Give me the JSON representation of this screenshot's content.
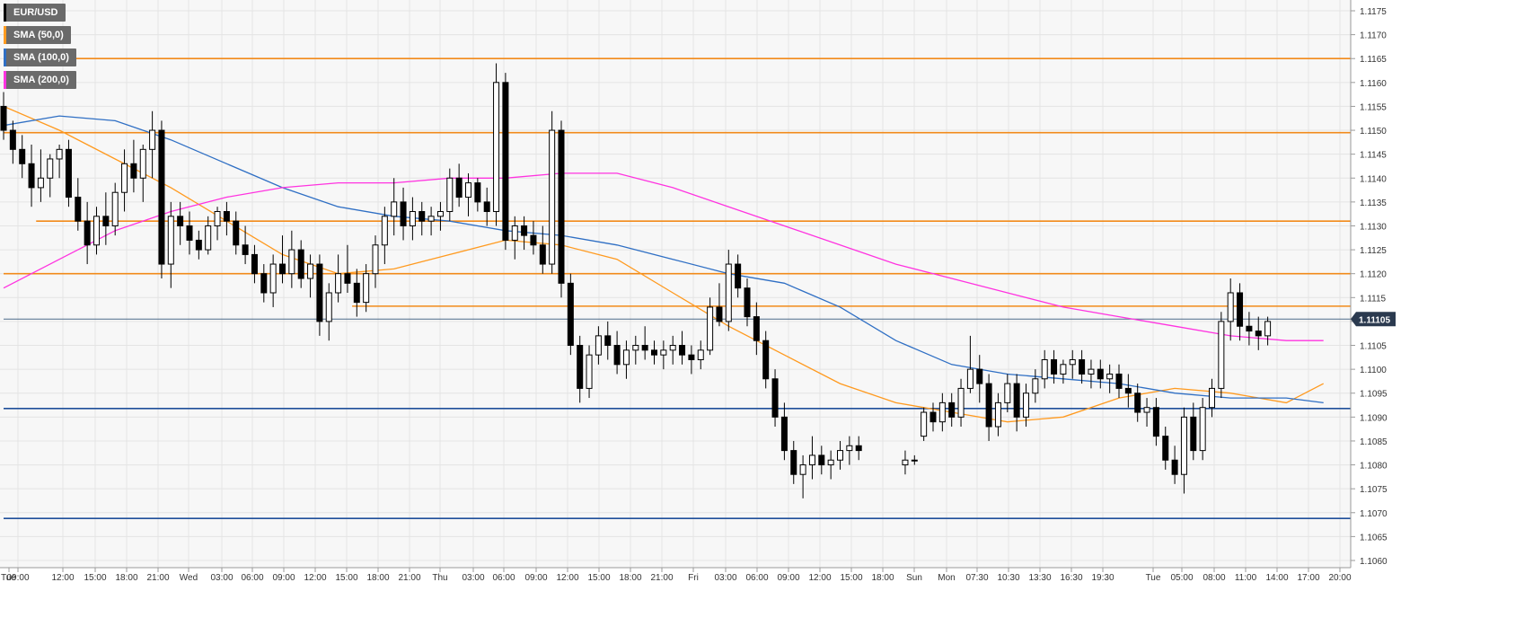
{
  "legend": [
    {
      "label": "EUR/USD",
      "color": "#000000"
    },
    {
      "label": "SMA (50,0)",
      "color": "#ff9a1f"
    },
    {
      "label": "SMA (100,0)",
      "color": "#2f6fc4"
    },
    {
      "label": "SMA (200,0)",
      "color": "#ff33e0"
    }
  ],
  "last_price_label": "1.11105",
  "chart_data": {
    "type": "candlestick",
    "symbol": "EUR/USD",
    "ylim": [
      1.1058,
      1.1178
    ],
    "y_ticks": [
      "1.1060",
      "1.1065",
      "1.1070",
      "1.1075",
      "1.1080",
      "1.1085",
      "1.1090",
      "1.1095",
      "1.1100",
      "1.1105",
      "1.1110",
      "1.1115",
      "1.1120",
      "1.1125",
      "1.1130",
      "1.1135",
      "1.1140",
      "1.1145",
      "1.1150",
      "1.1155",
      "1.1160",
      "1.1165",
      "1.1170",
      "1.1175"
    ],
    "x_ticks": [
      "Tue",
      "09:00",
      "12:00",
      "15:00",
      "18:00",
      "21:00",
      "Wed",
      "03:00",
      "06:00",
      "09:00",
      "12:00",
      "15:00",
      "18:00",
      "21:00",
      "Thu",
      "03:00",
      "06:00",
      "09:00",
      "12:00",
      "15:00",
      "18:00",
      "21:00",
      "Fri",
      "03:00",
      "06:00",
      "09:00",
      "12:00",
      "15:00",
      "18:00",
      "Sun",
      "Mon",
      "07:30",
      "10:30",
      "13:30",
      "16:30",
      "19:30",
      "Tue",
      "05:00",
      "08:00",
      "11:00",
      "14:00",
      "17:00",
      "20:00"
    ],
    "x_range": [
      0,
      155
    ],
    "last_price": 1.11105,
    "horizontal_levels": [
      {
        "value": 1.1165,
        "color": "#f28a1a",
        "x_start": 0
      },
      {
        "value": 1.11495,
        "color": "#f28a1a",
        "x_start": 0
      },
      {
        "value": 1.1131,
        "color": "#f28a1a",
        "x_start": 3.5
      },
      {
        "value": 1.112,
        "color": "#f28a1a",
        "x_start": 0
      },
      {
        "value": 1.11132,
        "color": "#f28a1a",
        "x_start": 37.5
      },
      {
        "value": 1.11105,
        "color": "#4d6a8a",
        "x_start": 0
      },
      {
        "value": 1.10918,
        "color": "#1f4f9a",
        "x_start": 0
      },
      {
        "value": 1.10688,
        "color": "#1f4f9a",
        "x_start": 0
      }
    ],
    "candles": [
      [
        1.1155,
        1.1158,
        1.1148,
        1.115
      ],
      [
        1.115,
        1.1152,
        1.1143,
        1.1146
      ],
      [
        1.1146,
        1.1149,
        1.114,
        1.1143
      ],
      [
        1.1143,
        1.1147,
        1.1134,
        1.1138
      ],
      [
        1.1138,
        1.1146,
        1.1135,
        1.114
      ],
      [
        1.114,
        1.1145,
        1.1136,
        1.1144
      ],
      [
        1.1144,
        1.1147,
        1.114,
        1.1146
      ],
      [
        1.1146,
        1.1148,
        1.1134,
        1.1136
      ],
      [
        1.1136,
        1.114,
        1.1129,
        1.1131
      ],
      [
        1.1131,
        1.1135,
        1.1122,
        1.1126
      ],
      [
        1.1126,
        1.1134,
        1.1124,
        1.1132
      ],
      [
        1.1132,
        1.1137,
        1.1126,
        1.113
      ],
      [
        1.113,
        1.1139,
        1.1128,
        1.1137
      ],
      [
        1.1137,
        1.1146,
        1.1133,
        1.1143
      ],
      [
        1.1143,
        1.1148,
        1.1137,
        1.114
      ],
      [
        1.114,
        1.1147,
        1.1135,
        1.1146
      ],
      [
        1.1146,
        1.1154,
        1.114,
        1.115
      ],
      [
        1.115,
        1.1152,
        1.1119,
        1.1122
      ],
      [
        1.1122,
        1.1135,
        1.1117,
        1.1132
      ],
      [
        1.1132,
        1.1135,
        1.1126,
        1.113
      ],
      [
        1.113,
        1.1133,
        1.1124,
        1.1127
      ],
      [
        1.1127,
        1.1129,
        1.1123,
        1.1125
      ],
      [
        1.1125,
        1.1132,
        1.1124,
        1.113
      ],
      [
        1.113,
        1.1134,
        1.1127,
        1.1133
      ],
      [
        1.1133,
        1.1135,
        1.1128,
        1.1131
      ],
      [
        1.1131,
        1.1133,
        1.1124,
        1.1126
      ],
      [
        1.1126,
        1.113,
        1.1122,
        1.1124
      ],
      [
        1.1124,
        1.1126,
        1.1118,
        1.112
      ],
      [
        1.112,
        1.1122,
        1.1114,
        1.1116
      ],
      [
        1.1116,
        1.1124,
        1.1113,
        1.1122
      ],
      [
        1.1122,
        1.1128,
        1.1118,
        1.112
      ],
      [
        1.112,
        1.1129,
        1.1117,
        1.1125
      ],
      [
        1.1125,
        1.1127,
        1.1117,
        1.1119
      ],
      [
        1.1119,
        1.1124,
        1.1115,
        1.1122
      ],
      [
        1.1122,
        1.1124,
        1.1107,
        1.111
      ],
      [
        1.111,
        1.1118,
        1.1106,
        1.1116
      ],
      [
        1.1116,
        1.1124,
        1.1114,
        1.112
      ],
      [
        1.112,
        1.1126,
        1.1116,
        1.1118
      ],
      [
        1.1118,
        1.1121,
        1.1111,
        1.1114
      ],
      [
        1.1114,
        1.1122,
        1.1112,
        1.112
      ],
      [
        1.112,
        1.1128,
        1.1117,
        1.1126
      ],
      [
        1.1126,
        1.1134,
        1.1122,
        1.1132
      ],
      [
        1.1132,
        1.114,
        1.1128,
        1.1135
      ],
      [
        1.1135,
        1.1138,
        1.1127,
        1.113
      ],
      [
        1.113,
        1.1136,
        1.1127,
        1.1133
      ],
      [
        1.1133,
        1.1135,
        1.1128,
        1.1131
      ],
      [
        1.1131,
        1.1134,
        1.1128,
        1.1132
      ],
      [
        1.1132,
        1.1135,
        1.1129,
        1.1133
      ],
      [
        1.1133,
        1.1142,
        1.1131,
        1.114
      ],
      [
        1.114,
        1.1143,
        1.1134,
        1.1136
      ],
      [
        1.1136,
        1.1141,
        1.1132,
        1.1139
      ],
      [
        1.1139,
        1.114,
        1.1133,
        1.1135
      ],
      [
        1.1135,
        1.1138,
        1.113,
        1.1133
      ],
      [
        1.1133,
        1.1164,
        1.113,
        1.116
      ],
      [
        1.116,
        1.1162,
        1.1125,
        1.1127
      ],
      [
        1.1127,
        1.1132,
        1.1123,
        1.113
      ],
      [
        1.113,
        1.1132,
        1.1125,
        1.1128
      ],
      [
        1.1128,
        1.1131,
        1.1124,
        1.1126
      ],
      [
        1.1126,
        1.113,
        1.112,
        1.1122
      ],
      [
        1.1122,
        1.1154,
        1.112,
        1.115
      ],
      [
        1.115,
        1.1152,
        1.1115,
        1.1118
      ],
      [
        1.1118,
        1.112,
        1.1103,
        1.1105
      ],
      [
        1.1105,
        1.1107,
        1.1093,
        1.1096
      ],
      [
        1.1096,
        1.1105,
        1.1094,
        1.1103
      ],
      [
        1.1103,
        1.1109,
        1.1101,
        1.1107
      ],
      [
        1.1107,
        1.111,
        1.1102,
        1.1105
      ],
      [
        1.1105,
        1.1108,
        1.1099,
        1.1101
      ],
      [
        1.1101,
        1.1106,
        1.1098,
        1.1104
      ],
      [
        1.1104,
        1.1107,
        1.1101,
        1.1105
      ],
      [
        1.1105,
        1.1109,
        1.1102,
        1.1104
      ],
      [
        1.1104,
        1.1106,
        1.1101,
        1.1103
      ],
      [
        1.1103,
        1.1106,
        1.11,
        1.1104
      ],
      [
        1.1104,
        1.1107,
        1.1101,
        1.1105
      ],
      [
        1.1105,
        1.1108,
        1.1101,
        1.1103
      ],
      [
        1.1103,
        1.1105,
        1.1099,
        1.1102
      ],
      [
        1.1102,
        1.1106,
        1.11,
        1.1104
      ],
      [
        1.1104,
        1.1115,
        1.1103,
        1.1113
      ],
      [
        1.1113,
        1.1118,
        1.1109,
        1.111
      ],
      [
        1.111,
        1.1125,
        1.1108,
        1.1122
      ],
      [
        1.1122,
        1.1124,
        1.1115,
        1.1117
      ],
      [
        1.1117,
        1.1119,
        1.1109,
        1.1111
      ],
      [
        1.1111,
        1.1114,
        1.1103,
        1.1106
      ],
      [
        1.1106,
        1.1108,
        1.1096,
        1.1098
      ],
      [
        1.1098,
        1.11,
        1.1088,
        1.109
      ],
      [
        1.109,
        1.1093,
        1.1081,
        1.1083
      ],
      [
        1.1083,
        1.1085,
        1.1076,
        1.1078
      ],
      [
        1.1078,
        1.1082,
        1.1073,
        1.108
      ],
      [
        1.108,
        1.1086,
        1.1077,
        1.1082
      ],
      [
        1.1082,
        1.1084,
        1.1078,
        1.108
      ],
      [
        1.108,
        1.1083,
        1.1077,
        1.1081
      ],
      [
        1.1081,
        1.1085,
        1.1079,
        1.1083
      ],
      [
        1.1083,
        1.1086,
        1.108,
        1.1084
      ],
      [
        1.1084,
        1.1086,
        1.1081,
        1.1083
      ],
      [
        1.108,
        1.1083,
        1.1078,
        1.1081
      ],
      [
        1.1081,
        1.1082,
        1.108,
        1.1081
      ],
      [
        1.1086,
        1.1092,
        1.1085,
        1.1091
      ],
      [
        1.1091,
        1.1093,
        1.1087,
        1.1089
      ],
      [
        1.1089,
        1.1095,
        1.1087,
        1.1093
      ],
      [
        1.1093,
        1.1095,
        1.1088,
        1.109
      ],
      [
        1.109,
        1.1098,
        1.1088,
        1.1096
      ],
      [
        1.1096,
        1.1107,
        1.1095,
        1.11
      ],
      [
        1.11,
        1.1103,
        1.1093,
        1.1097
      ],
      [
        1.1097,
        1.1099,
        1.1085,
        1.1088
      ],
      [
        1.1088,
        1.1095,
        1.1086,
        1.1093
      ],
      [
        1.1093,
        1.1099,
        1.1091,
        1.1097
      ],
      [
        1.1097,
        1.1099,
        1.1087,
        1.109
      ],
      [
        1.109,
        1.1097,
        1.1088,
        1.1095
      ],
      [
        1.1095,
        1.11,
        1.1093,
        1.1098
      ],
      [
        1.1098,
        1.1104,
        1.1096,
        1.1102
      ],
      [
        1.1102,
        1.1104,
        1.1097,
        1.1099
      ],
      [
        1.1099,
        1.1102,
        1.1097,
        1.1101
      ],
      [
        1.1101,
        1.1104,
        1.1098,
        1.1102
      ],
      [
        1.1102,
        1.1104,
        1.1097,
        1.1099
      ],
      [
        1.1099,
        1.1102,
        1.1096,
        1.11
      ],
      [
        1.11,
        1.1102,
        1.1096,
        1.1098
      ],
      [
        1.1098,
        1.1101,
        1.1095,
        1.1099
      ],
      [
        1.1099,
        1.1101,
        1.1094,
        1.1096
      ],
      [
        1.1096,
        1.1099,
        1.1092,
        1.1095
      ],
      [
        1.1095,
        1.1097,
        1.1089,
        1.1091
      ],
      [
        1.1091,
        1.1094,
        1.1088,
        1.1092
      ],
      [
        1.1092,
        1.1094,
        1.1084,
        1.1086
      ],
      [
        1.1086,
        1.1088,
        1.1079,
        1.1081
      ],
      [
        1.1081,
        1.1084,
        1.1076,
        1.1078
      ],
      [
        1.1078,
        1.1092,
        1.1074,
        1.109
      ],
      [
        1.109,
        1.1093,
        1.1081,
        1.1083
      ],
      [
        1.1083,
        1.1094,
        1.1081,
        1.1092
      ],
      [
        1.1092,
        1.1098,
        1.109,
        1.1096
      ],
      [
        1.1096,
        1.1112,
        1.1094,
        1.111
      ],
      [
        1.111,
        1.1119,
        1.1106,
        1.1116
      ],
      [
        1.1116,
        1.1118,
        1.1106,
        1.1109
      ],
      [
        1.1109,
        1.1112,
        1.1105,
        1.1108
      ],
      [
        1.1108,
        1.1111,
        1.1104,
        1.1107
      ],
      [
        1.1107,
        1.1111,
        1.1105,
        1.111
      ]
    ],
    "candle_x": [
      0,
      1,
      2,
      3,
      4,
      5,
      6,
      7,
      8,
      9,
      10,
      11,
      12,
      13,
      14,
      15,
      16,
      17,
      18,
      19,
      20,
      21,
      22,
      23,
      24,
      25,
      26,
      27,
      28,
      29,
      30,
      31,
      32,
      33,
      34,
      35,
      36,
      37,
      38,
      39,
      40,
      41,
      42,
      43,
      44,
      45,
      46,
      47,
      48,
      49,
      50,
      51,
      52,
      53,
      54,
      55,
      56,
      57,
      58,
      59,
      60,
      61,
      62,
      63,
      64,
      65,
      66,
      67,
      68,
      69,
      70,
      71,
      72,
      73,
      74,
      75,
      76,
      77,
      78,
      79,
      80,
      81,
      82,
      83,
      84,
      85,
      86,
      87,
      88,
      89,
      90,
      91,
      92,
      97,
      98,
      99,
      100,
      101,
      102,
      103,
      104,
      105,
      106,
      107,
      108,
      109,
      110,
      111,
      112,
      113,
      114,
      115,
      116,
      117,
      118,
      119,
      120,
      121,
      122,
      123,
      124,
      125,
      126,
      127,
      128,
      129,
      130,
      131,
      132,
      133,
      134,
      135,
      136,
      137,
      138,
      139,
      140,
      141,
      142
    ],
    "series": [
      {
        "name": "SMA (50,0)",
        "color": "#ff9a1f",
        "x": [
          0,
          6,
          12,
          18,
          24,
          30,
          36,
          42,
          48,
          54,
          60,
          66,
          72,
          78,
          84,
          90,
          96,
          102,
          108,
          114,
          120,
          126,
          132,
          138,
          142
        ],
        "y": [
          1.1155,
          1.115,
          1.1144,
          1.1138,
          1.1131,
          1.1124,
          1.112,
          1.1121,
          1.1124,
          1.1127,
          1.1126,
          1.1123,
          1.1116,
          1.1109,
          1.1103,
          1.1097,
          1.1093,
          1.1091,
          1.1089,
          1.109,
          1.1094,
          1.1096,
          1.1095,
          1.1093,
          1.1097
        ]
      },
      {
        "name": "SMA (100,0)",
        "color": "#2f6fc4",
        "x": [
          0,
          6,
          12,
          18,
          24,
          30,
          36,
          42,
          48,
          54,
          60,
          66,
          72,
          78,
          84,
          90,
          96,
          102,
          108,
          114,
          120,
          126,
          132,
          138,
          142
        ],
        "y": [
          1.1151,
          1.1153,
          1.1152,
          1.1148,
          1.1143,
          1.1138,
          1.1134,
          1.1132,
          1.1131,
          1.1129,
          1.1128,
          1.1126,
          1.1123,
          1.112,
          1.1118,
          1.1113,
          1.1106,
          1.1101,
          1.1099,
          1.1098,
          1.1097,
          1.1095,
          1.1094,
          1.1094,
          1.1093
        ]
      },
      {
        "name": "SMA (200,0)",
        "color": "#ff33e0",
        "x": [
          0,
          6,
          12,
          18,
          24,
          30,
          36,
          42,
          48,
          54,
          60,
          66,
          72,
          78,
          84,
          90,
          96,
          102,
          108,
          114,
          120,
          126,
          132,
          138,
          142
        ],
        "y": [
          1.1117,
          1.1123,
          1.1129,
          1.1133,
          1.1136,
          1.1138,
          1.1139,
          1.1139,
          1.114,
          1.114,
          1.1141,
          1.1141,
          1.1138,
          1.1134,
          1.113,
          1.1126,
          1.1122,
          1.1119,
          1.1116,
          1.1113,
          1.1111,
          1.1109,
          1.1107,
          1.1106,
          1.1106
        ]
      }
    ]
  }
}
